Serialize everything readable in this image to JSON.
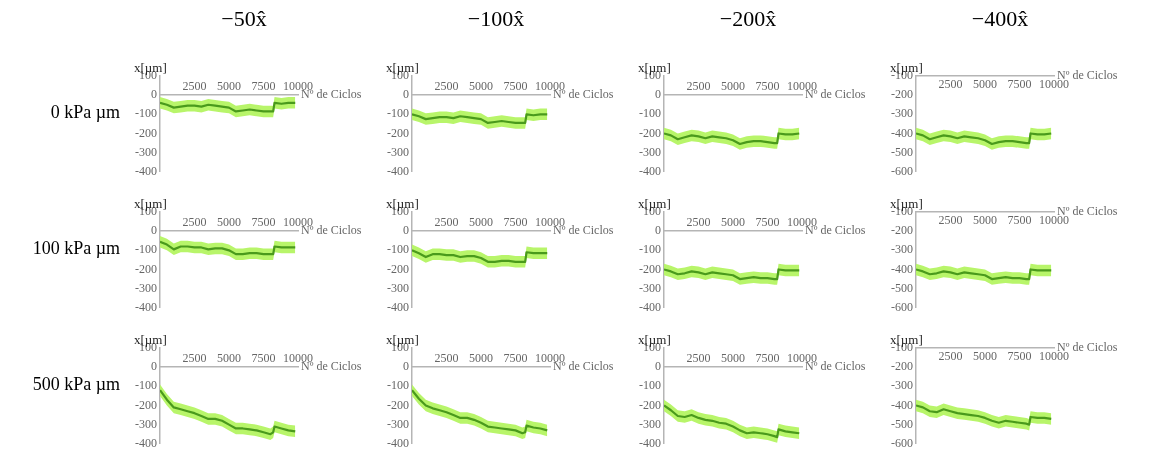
{
  "chart_data": [
    {
      "type": "line",
      "title": "−50x̂",
      "annotations": [
        "0 kPa µm"
      ],
      "xlabel": "Nº de Ciclos",
      "ylabel": "x[µm]",
      "x": [
        0,
        500,
        1000,
        1500,
        2000,
        2500,
        3000,
        3500,
        4000,
        4500,
        5000,
        5500,
        6000,
        6500,
        7000,
        7500,
        8000,
        8200,
        8300,
        8800,
        9300,
        9800
      ],
      "xlim": [
        0,
        10000
      ],
      "xticks": [
        2500,
        5000,
        7500,
        10000
      ],
      "ylim": [
        -400,
        100
      ],
      "yticks": [
        -400,
        -300,
        -200,
        -100,
        0,
        100
      ],
      "series": [
        {
          "color": "#4a9a1c",
          "values": [
            -40,
            -50,
            -65,
            -60,
            -55,
            -55,
            -60,
            -50,
            -55,
            -60,
            -65,
            -85,
            -80,
            -75,
            -80,
            -85,
            -85,
            -85,
            -40,
            -45,
            -40,
            -40
          ],
          "lower": [
            -70,
            -80,
            -95,
            -90,
            -85,
            -85,
            -90,
            -80,
            -85,
            -90,
            -95,
            -115,
            -110,
            -105,
            -110,
            -115,
            -115,
            -115,
            -70,
            -75,
            -70,
            -70
          ],
          "upper": [
            -10,
            -20,
            -35,
            -30,
            -25,
            -25,
            -30,
            -20,
            -25,
            -30,
            -35,
            -55,
            -50,
            -45,
            -50,
            -55,
            -55,
            -55,
            -10,
            -15,
            -10,
            -10
          ]
        }
      ]
    },
    {
      "type": "line",
      "title": "−100x̂",
      "xlabel": "Nº de Ciclos",
      "ylabel": "x[µm]",
      "x": [
        0,
        500,
        1000,
        1500,
        2000,
        2500,
        3000,
        3500,
        4000,
        4500,
        5000,
        5500,
        6000,
        6500,
        7000,
        7500,
        8000,
        8200,
        8300,
        8800,
        9300,
        9800
      ],
      "xlim": [
        0,
        10000
      ],
      "xticks": [
        2500,
        5000,
        7500,
        10000
      ],
      "ylim": [
        -400,
        100
      ],
      "yticks": [
        -400,
        -300,
        -200,
        -100,
        0,
        100
      ],
      "series": [
        {
          "color": "#4a9a1c",
          "values": [
            -100,
            -110,
            -125,
            -120,
            -115,
            -115,
            -120,
            -110,
            -115,
            -120,
            -125,
            -145,
            -140,
            -135,
            -140,
            -145,
            -145,
            -145,
            -100,
            -105,
            -100,
            -100
          ],
          "lower": [
            -130,
            -140,
            -155,
            -150,
            -145,
            -145,
            -150,
            -140,
            -145,
            -150,
            -155,
            -175,
            -170,
            -165,
            -170,
            -175,
            -175,
            -175,
            -130,
            -135,
            -130,
            -130
          ],
          "upper": [
            -70,
            -80,
            -95,
            -90,
            -85,
            -85,
            -90,
            -80,
            -85,
            -90,
            -95,
            -115,
            -110,
            -105,
            -110,
            -115,
            -115,
            -115,
            -70,
            -75,
            -70,
            -70
          ]
        }
      ]
    },
    {
      "type": "line",
      "title": "−200x̂",
      "xlabel": "Nº de Ciclos",
      "ylabel": "x[µm]",
      "x": [
        0,
        500,
        1000,
        1500,
        2000,
        2500,
        3000,
        3500,
        4000,
        4500,
        5000,
        5500,
        6000,
        6500,
        7000,
        7500,
        8000,
        8200,
        8300,
        8800,
        9300,
        9800
      ],
      "xlim": [
        0,
        10000
      ],
      "xticks": [
        2500,
        5000,
        7500,
        10000
      ],
      "ylim": [
        -400,
        100
      ],
      "yticks": [
        -400,
        -300,
        -200,
        -100,
        0,
        100
      ],
      "series": [
        {
          "color": "#4a9a1c",
          "values": [
            -200,
            -210,
            -230,
            -220,
            -210,
            -215,
            -225,
            -215,
            -220,
            -225,
            -235,
            -255,
            -245,
            -240,
            -240,
            -245,
            -250,
            -250,
            -200,
            -205,
            -205,
            -200
          ],
          "lower": [
            -230,
            -240,
            -260,
            -250,
            -240,
            -245,
            -255,
            -245,
            -250,
            -255,
            -265,
            -285,
            -275,
            -270,
            -270,
            -275,
            -280,
            -280,
            -230,
            -235,
            -235,
            -230
          ],
          "upper": [
            -170,
            -180,
            -200,
            -190,
            -180,
            -185,
            -195,
            -185,
            -190,
            -195,
            -205,
            -225,
            -215,
            -210,
            -210,
            -215,
            -220,
            -220,
            -170,
            -175,
            -175,
            -170
          ]
        }
      ]
    },
    {
      "type": "line",
      "title": "−400x̂",
      "xlabel": "Nº de Ciclos",
      "ylabel": "x[µm]",
      "x": [
        0,
        500,
        1000,
        1500,
        2000,
        2500,
        3000,
        3500,
        4000,
        4500,
        5000,
        5500,
        6000,
        6500,
        7000,
        7500,
        8000,
        8200,
        8300,
        8800,
        9300,
        9800
      ],
      "xlim": [
        0,
        10000
      ],
      "xticks": [
        2500,
        5000,
        7500,
        10000
      ],
      "ylim": [
        -600,
        -100
      ],
      "yticks": [
        -600,
        -500,
        -400,
        -300,
        -200,
        -100
      ],
      "series": [
        {
          "color": "#4a9a1c",
          "values": [
            -400,
            -410,
            -430,
            -420,
            -410,
            -415,
            -425,
            -415,
            -420,
            -425,
            -435,
            -455,
            -445,
            -440,
            -440,
            -445,
            -450,
            -450,
            -400,
            -405,
            -405,
            -400
          ],
          "lower": [
            -430,
            -440,
            -460,
            -450,
            -440,
            -445,
            -455,
            -445,
            -450,
            -455,
            -465,
            -485,
            -475,
            -470,
            -470,
            -475,
            -480,
            -480,
            -430,
            -435,
            -435,
            -430
          ],
          "upper": [
            -370,
            -380,
            -400,
            -390,
            -380,
            -385,
            -395,
            -385,
            -390,
            -395,
            -405,
            -425,
            -415,
            -410,
            -410,
            -415,
            -420,
            -420,
            -370,
            -375,
            -375,
            -370
          ]
        }
      ]
    },
    {
      "type": "line",
      "annotations": [
        "100 kPa µm"
      ],
      "xlabel": "Nº de Ciclos",
      "ylabel": "x[µm]",
      "x": [
        0,
        500,
        1000,
        1500,
        2000,
        2500,
        3000,
        3500,
        4000,
        4500,
        5000,
        5500,
        6000,
        6500,
        7000,
        7500,
        8000,
        8200,
        8300,
        8800,
        9300,
        9800
      ],
      "xlim": [
        0,
        10000
      ],
      "xticks": [
        2500,
        5000,
        7500,
        10000
      ],
      "ylim": [
        -400,
        100
      ],
      "yticks": [
        -400,
        -300,
        -200,
        -100,
        0,
        100
      ],
      "series": [
        {
          "color": "#4a9a1c",
          "values": [
            -55,
            -70,
            -95,
            -80,
            -80,
            -85,
            -85,
            -95,
            -90,
            -90,
            -100,
            -120,
            -120,
            -115,
            -115,
            -120,
            -120,
            -120,
            -80,
            -85,
            -85,
            -85
          ],
          "lower": [
            -85,
            -100,
            -125,
            -110,
            -110,
            -115,
            -115,
            -125,
            -120,
            -120,
            -130,
            -150,
            -150,
            -145,
            -145,
            -150,
            -150,
            -150,
            -110,
            -115,
            -115,
            -115
          ],
          "upper": [
            -25,
            -40,
            -65,
            -50,
            -50,
            -55,
            -55,
            -65,
            -60,
            -60,
            -70,
            -90,
            -90,
            -85,
            -85,
            -90,
            -90,
            -90,
            -50,
            -55,
            -55,
            -55
          ]
        }
      ]
    },
    {
      "type": "line",
      "xlabel": "Nº de Ciclos",
      "ylabel": "x[µm]",
      "x": [
        0,
        500,
        1000,
        1500,
        2000,
        2500,
        3000,
        3500,
        4000,
        4500,
        5000,
        5500,
        6000,
        6500,
        7000,
        7500,
        8000,
        8200,
        8300,
        8800,
        9300,
        9800
      ],
      "xlim": [
        0,
        10000
      ],
      "xticks": [
        2500,
        5000,
        7500,
        10000
      ],
      "ylim": [
        -400,
        100
      ],
      "yticks": [
        -400,
        -300,
        -200,
        -100,
        0,
        100
      ],
      "series": [
        {
          "color": "#4a9a1c",
          "values": [
            -100,
            -115,
            -135,
            -120,
            -120,
            -125,
            -125,
            -135,
            -130,
            -130,
            -140,
            -160,
            -160,
            -155,
            -155,
            -160,
            -160,
            -160,
            -110,
            -115,
            -115,
            -115
          ],
          "lower": [
            -130,
            -145,
            -165,
            -150,
            -150,
            -155,
            -155,
            -165,
            -160,
            -160,
            -170,
            -190,
            -190,
            -185,
            -185,
            -190,
            -190,
            -190,
            -140,
            -145,
            -145,
            -145
          ],
          "upper": [
            -70,
            -85,
            -105,
            -90,
            -90,
            -95,
            -95,
            -105,
            -100,
            -100,
            -110,
            -130,
            -130,
            -125,
            -125,
            -130,
            -130,
            -130,
            -80,
            -85,
            -85,
            -85
          ]
        }
      ]
    },
    {
      "type": "line",
      "xlabel": "Nº de Ciclos",
      "ylabel": "x[µm]",
      "x": [
        0,
        500,
        1000,
        1500,
        2000,
        2500,
        3000,
        3500,
        4000,
        4500,
        5000,
        5500,
        6000,
        6500,
        7000,
        7500,
        8000,
        8200,
        8300,
        8800,
        9300,
        9800
      ],
      "xlim": [
        0,
        10000
      ],
      "xticks": [
        2500,
        5000,
        7500,
        10000
      ],
      "ylim": [
        -400,
        100
      ],
      "yticks": [
        -400,
        -300,
        -200,
        -100,
        0,
        100
      ],
      "series": [
        {
          "color": "#4a9a1c",
          "values": [
            -200,
            -210,
            -225,
            -220,
            -210,
            -215,
            -225,
            -215,
            -220,
            -225,
            -230,
            -250,
            -245,
            -240,
            -245,
            -245,
            -250,
            -250,
            -200,
            -205,
            -205,
            -205
          ],
          "lower": [
            -230,
            -240,
            -255,
            -250,
            -240,
            -245,
            -255,
            -245,
            -250,
            -255,
            -260,
            -280,
            -275,
            -270,
            -275,
            -275,
            -280,
            -280,
            -230,
            -235,
            -235,
            -235
          ],
          "upper": [
            -170,
            -180,
            -195,
            -190,
            -180,
            -185,
            -195,
            -185,
            -190,
            -195,
            -200,
            -220,
            -215,
            -210,
            -215,
            -215,
            -220,
            -220,
            -170,
            -175,
            -175,
            -175
          ]
        }
      ]
    },
    {
      "type": "line",
      "xlabel": "Nº de Ciclos",
      "ylabel": "x[µm]",
      "x": [
        0,
        500,
        1000,
        1500,
        2000,
        2500,
        3000,
        3500,
        4000,
        4500,
        5000,
        5500,
        6000,
        6500,
        7000,
        7500,
        8000,
        8200,
        8300,
        8800,
        9300,
        9800
      ],
      "xlim": [
        0,
        10000
      ],
      "xticks": [
        2500,
        5000,
        7500,
        10000
      ],
      "ylim": [
        -600,
        -100
      ],
      "yticks": [
        -600,
        -500,
        -400,
        -300,
        -200,
        -100
      ],
      "series": [
        {
          "color": "#4a9a1c",
          "values": [
            -400,
            -410,
            -425,
            -420,
            -410,
            -415,
            -425,
            -415,
            -420,
            -425,
            -430,
            -450,
            -445,
            -440,
            -445,
            -445,
            -450,
            -450,
            -400,
            -405,
            -405,
            -405
          ],
          "lower": [
            -430,
            -440,
            -455,
            -450,
            -440,
            -445,
            -455,
            -445,
            -450,
            -455,
            -460,
            -480,
            -475,
            -470,
            -475,
            -475,
            -480,
            -480,
            -430,
            -435,
            -435,
            -435
          ],
          "upper": [
            -370,
            -380,
            -395,
            -390,
            -380,
            -385,
            -395,
            -385,
            -390,
            -395,
            -400,
            -420,
            -415,
            -410,
            -415,
            -415,
            -420,
            -420,
            -370,
            -375,
            -375,
            -375
          ]
        }
      ]
    },
    {
      "type": "line",
      "annotations": [
        "500 kPa µm"
      ],
      "xlabel": "Nº de Ciclos",
      "ylabel": "x[µm]",
      "x": [
        0,
        500,
        1000,
        1500,
        2000,
        2500,
        3000,
        3500,
        4000,
        4500,
        5000,
        5500,
        6000,
        6500,
        7000,
        7500,
        8000,
        8200,
        8300,
        8800,
        9300,
        9800
      ],
      "xlim": [
        0,
        10000
      ],
      "xticks": [
        2500,
        5000,
        7500,
        10000
      ],
      "ylim": [
        -400,
        100
      ],
      "yticks": [
        -400,
        -300,
        -200,
        -100,
        0,
        100
      ],
      "series": [
        {
          "color": "#4a9a1c",
          "values": [
            -120,
            -170,
            -210,
            -220,
            -230,
            -240,
            -255,
            -270,
            -270,
            -280,
            -300,
            -320,
            -320,
            -325,
            -330,
            -340,
            -350,
            -340,
            -310,
            -320,
            -330,
            -335
          ],
          "lower": [
            -150,
            -200,
            -240,
            -250,
            -260,
            -270,
            -285,
            -300,
            -300,
            -310,
            -330,
            -350,
            -350,
            -355,
            -360,
            -370,
            -380,
            -370,
            -340,
            -350,
            -360,
            -365
          ],
          "upper": [
            -90,
            -140,
            -180,
            -190,
            -200,
            -210,
            -225,
            -240,
            -240,
            -250,
            -270,
            -290,
            -290,
            -295,
            -300,
            -310,
            -320,
            -310,
            -280,
            -290,
            -300,
            -305
          ]
        }
      ]
    },
    {
      "type": "line",
      "xlabel": "Nº de Ciclos",
      "ylabel": "x[µm]",
      "x": [
        0,
        500,
        1000,
        1500,
        2000,
        2500,
        3000,
        3500,
        4000,
        4500,
        5000,
        5500,
        6000,
        6500,
        7000,
        7500,
        8000,
        8200,
        8300,
        8800,
        9300,
        9800
      ],
      "xlim": [
        0,
        10000
      ],
      "xticks": [
        2500,
        5000,
        7500,
        10000
      ],
      "ylim": [
        -400,
        100
      ],
      "yticks": [
        -400,
        -300,
        -200,
        -100,
        0,
        100
      ],
      "series": [
        {
          "color": "#4a9a1c",
          "values": [
            -120,
            -165,
            -200,
            -215,
            -225,
            -235,
            -250,
            -265,
            -265,
            -275,
            -290,
            -310,
            -315,
            -320,
            -325,
            -330,
            -345,
            -340,
            -305,
            -315,
            -320,
            -330
          ],
          "lower": [
            -150,
            -195,
            -230,
            -245,
            -255,
            -265,
            -280,
            -295,
            -295,
            -305,
            -320,
            -340,
            -345,
            -350,
            -355,
            -360,
            -375,
            -370,
            -335,
            -345,
            -350,
            -360
          ],
          "upper": [
            -90,
            -135,
            -170,
            -185,
            -195,
            -205,
            -220,
            -235,
            -235,
            -245,
            -260,
            -280,
            -285,
            -290,
            -295,
            -300,
            -315,
            -310,
            -275,
            -285,
            -290,
            -300
          ]
        }
      ]
    },
    {
      "type": "line",
      "xlabel": "Nº de Ciclos",
      "ylabel": "x[µm]",
      "x": [
        0,
        500,
        1000,
        1500,
        2000,
        2500,
        3000,
        3500,
        4000,
        4500,
        5000,
        5500,
        6000,
        6500,
        7000,
        7500,
        8000,
        8200,
        8300,
        8800,
        9300,
        9800
      ],
      "xlim": [
        0,
        10000
      ],
      "xticks": [
        2500,
        5000,
        7500,
        10000
      ],
      "ylim": [
        -400,
        100
      ],
      "yticks": [
        -400,
        -300,
        -200,
        -100,
        0,
        100
      ],
      "series": [
        {
          "color": "#4a9a1c",
          "values": [
            -200,
            -225,
            -255,
            -260,
            -250,
            -265,
            -275,
            -280,
            -290,
            -295,
            -310,
            -330,
            -345,
            -340,
            -345,
            -350,
            -360,
            -365,
            -325,
            -335,
            -340,
            -345
          ],
          "lower": [
            -230,
            -255,
            -285,
            -290,
            -280,
            -295,
            -305,
            -310,
            -320,
            -325,
            -340,
            -360,
            -375,
            -370,
            -375,
            -380,
            -390,
            -395,
            -355,
            -365,
            -370,
            -375
          ],
          "upper": [
            -170,
            -195,
            -225,
            -230,
            -220,
            -235,
            -245,
            -250,
            -260,
            -265,
            -280,
            -300,
            -315,
            -310,
            -315,
            -320,
            -330,
            -335,
            -295,
            -305,
            -310,
            -315
          ]
        }
      ]
    },
    {
      "type": "line",
      "xlabel": "Nº de Ciclos",
      "ylabel": "x[µm]",
      "x": [
        0,
        500,
        1000,
        1500,
        2000,
        2500,
        3000,
        3500,
        4000,
        4500,
        5000,
        5500,
        6000,
        6500,
        7000,
        7500,
        8000,
        8200,
        8300,
        8800,
        9300,
        9800
      ],
      "xlim": [
        0,
        10000
      ],
      "xticks": [
        2500,
        5000,
        7500,
        10000
      ],
      "ylim": [
        -600,
        -100
      ],
      "yticks": [
        -600,
        -500,
        -400,
        -300,
        -200,
        -100
      ],
      "series": [
        {
          "color": "#4a9a1c",
          "values": [
            -400,
            -410,
            -430,
            -435,
            -420,
            -430,
            -440,
            -445,
            -450,
            -455,
            -465,
            -480,
            -490,
            -480,
            -485,
            -490,
            -495,
            -500,
            -460,
            -465,
            -465,
            -470
          ],
          "lower": [
            -430,
            -440,
            -460,
            -465,
            -450,
            -460,
            -470,
            -475,
            -480,
            -485,
            -495,
            -510,
            -520,
            -510,
            -515,
            -520,
            -525,
            -530,
            -490,
            -495,
            -495,
            -500
          ],
          "upper": [
            -370,
            -380,
            -400,
            -405,
            -390,
            -400,
            -410,
            -415,
            -420,
            -425,
            -435,
            -450,
            -460,
            -450,
            -455,
            -460,
            -465,
            -470,
            -430,
            -435,
            -435,
            -440
          ]
        }
      ]
    }
  ]
}
